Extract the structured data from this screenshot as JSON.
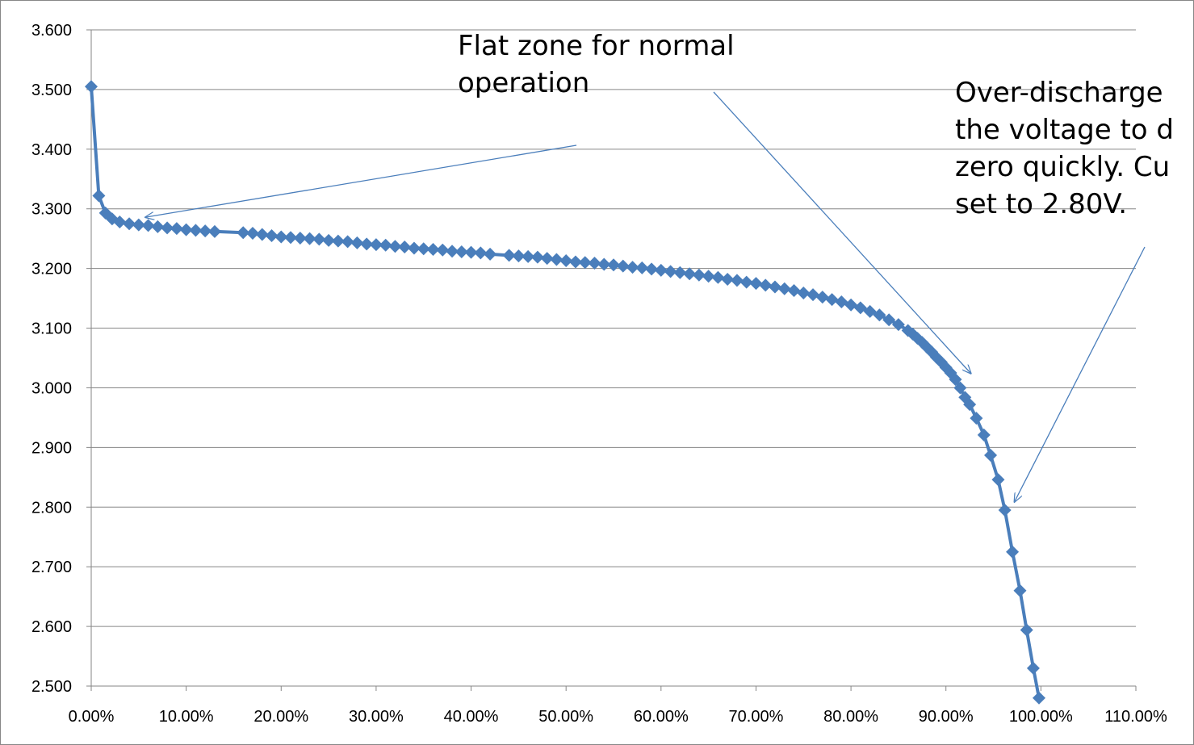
{
  "chart_data": {
    "type": "line",
    "title": "",
    "xlabel": "",
    "ylabel": "",
    "xlim": [
      0,
      1.1
    ],
    "ylim": [
      2.5,
      3.6
    ],
    "grid": "horizontal",
    "series_color": "#4A7EBB",
    "grid_color": "#868686",
    "x_tick_labels": [
      "0.00%",
      "10.00%",
      "20.00%",
      "30.00%",
      "40.00%",
      "50.00%",
      "60.00%",
      "70.00%",
      "80.00%",
      "90.00%",
      "100.00%",
      "110.00%"
    ],
    "y_tick_labels": [
      "3.600",
      "3.500",
      "3.400",
      "3.300",
      "3.200",
      "3.100",
      "3.000",
      "2.900",
      "2.800",
      "2.700",
      "2.600",
      "2.500"
    ],
    "series": [
      {
        "marker": "diamond",
        "x": [
          0.0,
          0.008,
          0.015,
          0.022,
          0.03,
          0.04,
          0.05,
          0.06,
          0.07,
          0.08,
          0.09,
          0.1,
          0.11,
          0.12,
          0.13,
          0.16,
          0.17,
          0.18,
          0.19,
          0.2,
          0.21,
          0.22,
          0.23,
          0.24,
          0.25,
          0.26,
          0.27,
          0.28,
          0.29,
          0.3,
          0.31,
          0.32,
          0.33,
          0.34,
          0.35,
          0.36,
          0.37,
          0.38,
          0.39,
          0.4,
          0.41,
          0.42,
          0.44,
          0.45,
          0.46,
          0.47,
          0.48,
          0.49,
          0.5,
          0.51,
          0.52,
          0.53,
          0.54,
          0.55,
          0.56,
          0.57,
          0.58,
          0.59,
          0.6,
          0.61,
          0.62,
          0.63,
          0.64,
          0.65,
          0.66,
          0.67,
          0.68,
          0.69,
          0.7,
          0.71,
          0.72,
          0.73,
          0.74,
          0.75,
          0.76,
          0.77,
          0.78,
          0.79,
          0.8,
          0.81,
          0.82,
          0.83,
          0.84,
          0.85,
          0.86,
          0.865,
          0.87,
          0.875,
          0.88,
          0.885,
          0.89,
          0.895,
          0.9,
          0.905,
          0.91,
          0.915,
          0.92,
          0.925,
          0.932,
          0.94,
          0.947,
          0.955,
          0.962,
          0.97,
          0.978,
          0.985,
          0.992,
          0.998
        ],
        "y": [
          3.505,
          3.322,
          3.293,
          3.283,
          3.278,
          3.275,
          3.273,
          3.272,
          3.27,
          3.268,
          3.267,
          3.265,
          3.264,
          3.263,
          3.262,
          3.26,
          3.259,
          3.257,
          3.255,
          3.253,
          3.252,
          3.251,
          3.25,
          3.249,
          3.247,
          3.246,
          3.245,
          3.243,
          3.241,
          3.24,
          3.239,
          3.237,
          3.236,
          3.234,
          3.233,
          3.232,
          3.231,
          3.229,
          3.228,
          3.227,
          3.226,
          3.224,
          3.222,
          3.221,
          3.22,
          3.219,
          3.217,
          3.215,
          3.213,
          3.211,
          3.21,
          3.209,
          3.207,
          3.206,
          3.204,
          3.202,
          3.201,
          3.199,
          3.197,
          3.195,
          3.193,
          3.191,
          3.189,
          3.187,
          3.185,
          3.182,
          3.18,
          3.177,
          3.175,
          3.172,
          3.169,
          3.166,
          3.163,
          3.159,
          3.156,
          3.152,
          3.148,
          3.144,
          3.139,
          3.134,
          3.128,
          3.122,
          3.114,
          3.106,
          3.096,
          3.09,
          3.083,
          3.076,
          3.068,
          3.06,
          3.051,
          3.043,
          3.034,
          3.025,
          3.014,
          3.0,
          2.984,
          2.972,
          2.949,
          2.921,
          2.887,
          2.846,
          2.795,
          2.725,
          2.66,
          2.594,
          2.53,
          2.48
        ]
      }
    ],
    "annotations": [
      {
        "lines": [
          "Flat zone for normal",
          "operation"
        ]
      },
      {
        "lines": [
          "Over-discharge",
          "the voltage to d",
          "zero quickly. Cu",
          "set to 2.80V."
        ]
      }
    ]
  }
}
